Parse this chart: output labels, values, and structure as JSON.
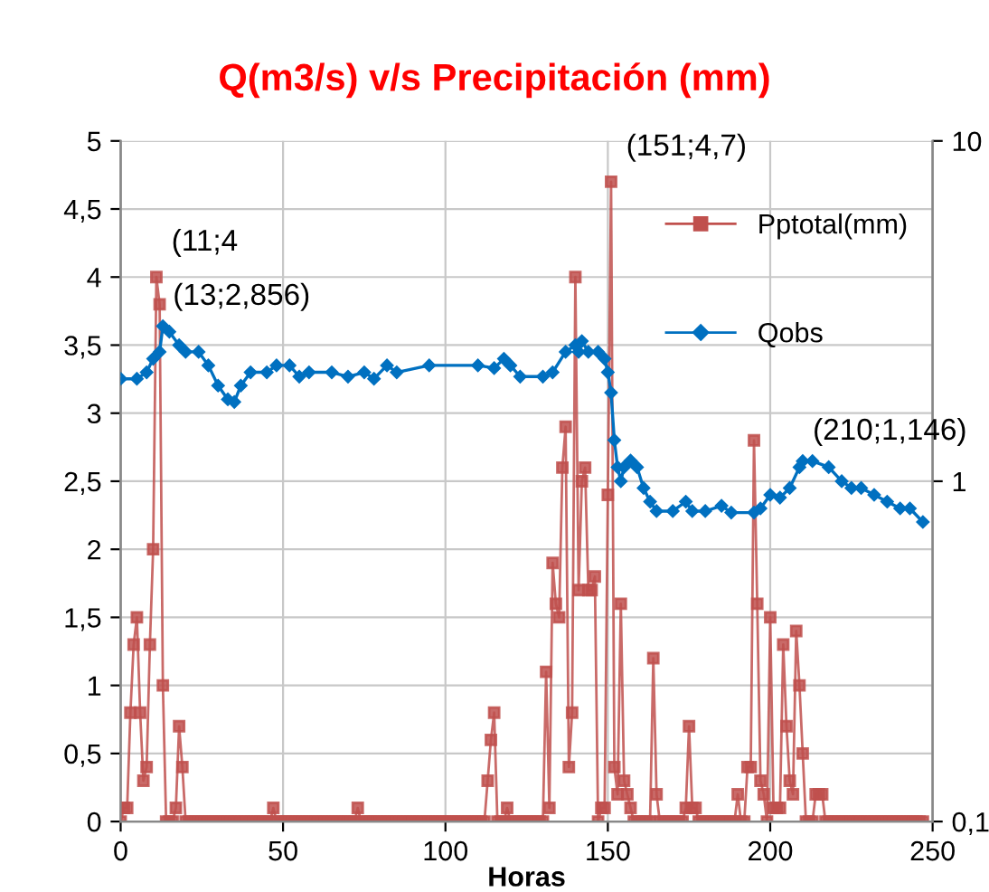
{
  "chart_data": {
    "type": "line",
    "title": "Q(m3/s) v/s Precipitación (mm)",
    "xlabel": "Horas",
    "xlim": [
      0,
      250
    ],
    "xticks": [
      0,
      50,
      100,
      150,
      200,
      250
    ],
    "ylim": [
      0,
      5
    ],
    "yticks": [
      0,
      {
        "value": 0.5,
        "label": "0,5"
      },
      1,
      {
        "value": 1.5,
        "label": "1,5"
      },
      2,
      {
        "value": 2.5,
        "label": "2,5"
      },
      3,
      {
        "value": 3.5,
        "label": "3,5"
      },
      4,
      {
        "value": 4.5,
        "label": "4,5"
      },
      5
    ],
    "y2lim": [
      0.1,
      10
    ],
    "y2ticks": [
      {
        "value": 0.1,
        "label": "0,1"
      },
      1,
      10
    ],
    "log": "y2",
    "grid": true,
    "legend": "top right",
    "annotations": [
      {
        "text": "(11;4",
        "x": 11,
        "y": 4
      },
      {
        "text": "(151;4,7)",
        "x": 151,
        "y": 4.7
      }
    ],
    "series": [
      {
        "name": "Pptotal(mm)",
        "color": "#c0504d",
        "marker": "square",
        "x": [
          0,
          1,
          2,
          3,
          4,
          5,
          6,
          7,
          8,
          9,
          10,
          11,
          12,
          13,
          14,
          15,
          16,
          17,
          18,
          19,
          20,
          21,
          22,
          23,
          24,
          25,
          26,
          27,
          28,
          29,
          30,
          31,
          32,
          33,
          34,
          35,
          36,
          37,
          38,
          39,
          40,
          41,
          42,
          43,
          44,
          45,
          46,
          47,
          48,
          49,
          50,
          51,
          52,
          53,
          54,
          55,
          56,
          57,
          58,
          59,
          60,
          61,
          62,
          63,
          64,
          65,
          66,
          67,
          68,
          69,
          70,
          71,
          72,
          73,
          74,
          75,
          76,
          77,
          78,
          79,
          80,
          81,
          82,
          83,
          84,
          85,
          86,
          87,
          88,
          89,
          90,
          91,
          92,
          93,
          94,
          95,
          96,
          97,
          98,
          99,
          100,
          101,
          102,
          103,
          104,
          105,
          106,
          107,
          108,
          109,
          110,
          111,
          112,
          113,
          114,
          115,
          116,
          117,
          118,
          119,
          120,
          121,
          122,
          123,
          124,
          125,
          126,
          127,
          128,
          129,
          130,
          131,
          132,
          133,
          134,
          135,
          136,
          137,
          138,
          139,
          140,
          141,
          142,
          143,
          144,
          145,
          146,
          147,
          148,
          149,
          150,
          151,
          152,
          153,
          154,
          155,
          156,
          157,
          158,
          159,
          160,
          161,
          162,
          163,
          164,
          165,
          166,
          167,
          168,
          169,
          170,
          171,
          172,
          173,
          174,
          175,
          176,
          177,
          178,
          179,
          180,
          181,
          182,
          183,
          184,
          185,
          186,
          187,
          188,
          189,
          190,
          191,
          192,
          193,
          194,
          195,
          196,
          197,
          198,
          199,
          200,
          201,
          202,
          203,
          204,
          205,
          206,
          207,
          208,
          209,
          210,
          211,
          212,
          213,
          214,
          215,
          216,
          217,
          218,
          219,
          220,
          221,
          222,
          223,
          224,
          225,
          226,
          227,
          228,
          229,
          230,
          231,
          232,
          233,
          234,
          235,
          236,
          237,
          238,
          239,
          240,
          241,
          242,
          243,
          244,
          245,
          246,
          247
        ],
        "values": [
          0,
          0.1,
          0.1,
          0.8,
          1.3,
          1.5,
          0.8,
          0.3,
          0.4,
          1.3,
          2,
          4,
          3.8,
          1,
          0,
          0,
          0,
          0.1,
          0.7,
          0.4,
          0,
          0,
          0,
          0,
          0,
          0,
          0,
          0,
          0,
          0,
          0,
          0,
          0,
          0,
          0,
          0,
          0,
          0,
          0,
          0,
          0,
          0,
          0,
          0,
          0,
          0,
          0,
          0.1,
          0,
          0,
          0,
          0,
          0,
          0,
          0,
          0,
          0,
          0,
          0,
          0,
          0,
          0,
          0,
          0,
          0,
          0,
          0,
          0,
          0,
          0,
          0,
          0,
          0,
          0.1,
          0,
          0,
          0,
          0,
          0,
          0,
          0,
          0,
          0,
          0,
          0,
          0,
          0,
          0,
          0,
          0,
          0,
          0,
          0,
          0,
          0,
          0,
          0,
          0,
          0,
          0,
          0,
          0,
          0,
          0,
          0,
          0,
          0,
          0,
          0,
          0,
          0,
          0,
          0,
          0.3,
          0.6,
          0.8,
          0,
          0,
          0,
          0.1,
          0,
          0,
          0,
          0,
          0,
          0,
          0,
          0,
          0,
          0,
          0,
          1.1,
          0.1,
          1.9,
          1.6,
          1.5,
          2.6,
          2.9,
          0.4,
          0.8,
          4,
          1.7,
          2.5,
          2.6,
          1.7,
          1.7,
          1.8,
          0,
          0.1,
          0.1,
          2.4,
          4.7,
          0.4,
          0.2,
          1.6,
          0.3,
          0.2,
          0.1,
          0,
          0,
          0,
          0,
          0,
          0,
          1.2,
          0.2,
          0,
          0,
          0,
          0,
          0,
          0,
          0,
          0,
          0.1,
          0.7,
          0.1,
          0.1,
          0,
          0,
          0,
          0,
          0,
          0,
          0,
          0,
          0,
          0,
          0,
          0,
          0.2,
          0,
          0,
          0.4,
          0.4,
          2.8,
          1.6,
          0.3,
          0.2,
          0,
          1.5,
          0.1,
          0.1,
          0.1,
          1.3,
          0.7,
          0.3,
          0.2,
          1.4,
          1,
          0.5,
          0,
          0,
          0,
          0.2,
          0.2,
          0.2,
          0,
          0,
          0,
          0,
          0,
          0,
          0,
          0,
          0,
          0,
          0,
          0,
          0,
          0,
          0,
          0,
          0,
          0,
          0,
          0,
          0,
          0,
          0,
          0,
          0,
          0,
          0,
          0,
          0,
          0,
          0
        ]
      },
      {
        "name": "Qobs",
        "color": "#0070c0",
        "marker": "diamond",
        "axis": "y2",
        "x": [
          0,
          5,
          8,
          10,
          12,
          13,
          15,
          18,
          20,
          24,
          27,
          30,
          33,
          35,
          37,
          40,
          45,
          48,
          52,
          55,
          58,
          65,
          70,
          75,
          78,
          82,
          85,
          95,
          110,
          115,
          118,
          120,
          123,
          130,
          133,
          137,
          140,
          141,
          142,
          144,
          147,
          149,
          150,
          151,
          152,
          153,
          154,
          155,
          157,
          159,
          161,
          163,
          165,
          170,
          174,
          176,
          180,
          185,
          188,
          195,
          197,
          200,
          203,
          206,
          209,
          210,
          213,
          218,
          222,
          225,
          228,
          232,
          236,
          240,
          243,
          247
        ],
        "values": [
          2.0,
          2.0,
          2.09,
          2.29,
          2.4,
          2.856,
          2.75,
          2.51,
          2.4,
          2.4,
          2.19,
          1.91,
          1.74,
          1.71,
          1.91,
          2.09,
          2.09,
          2.19,
          2.19,
          2.03,
          2.09,
          2.09,
          2.03,
          2.09,
          2.0,
          2.19,
          2.09,
          2.19,
          2.19,
          2.15,
          2.29,
          2.19,
          2.03,
          2.03,
          2.09,
          2.4,
          2.51,
          2.4,
          2.58,
          2.4,
          2.4,
          2.29,
          2.09,
          1.82,
          1.32,
          1.1,
          1.0,
          1.1,
          1.15,
          1.1,
          0.955,
          0.871,
          0.817,
          0.817,
          0.871,
          0.817,
          0.817,
          0.847,
          0.809,
          0.809,
          0.832,
          0.912,
          0.895,
          0.955,
          1.1,
          1.146,
          1.146,
          1.1,
          1.0,
          0.955,
          0.955,
          0.912,
          0.871,
          0.832,
          0.832,
          0.759
        ],
        "value_labels": [
          null,
          null,
          null,
          null,
          null,
          "(13;2,856)",
          null,
          null,
          null,
          null,
          null,
          null,
          null,
          null,
          null,
          null,
          null,
          null,
          null,
          null,
          null,
          null,
          null,
          null,
          null,
          null,
          null,
          null,
          null,
          null,
          null,
          null,
          null,
          null,
          null,
          null,
          null,
          null,
          null,
          null,
          null,
          null,
          null,
          null,
          null,
          null,
          null,
          null,
          null,
          null,
          null,
          null,
          null,
          null,
          null,
          null,
          null,
          null,
          null,
          null,
          null,
          null,
          null,
          null,
          null,
          "(210;1,146)",
          null,
          null,
          null,
          null,
          null,
          null,
          null,
          null,
          null,
          null
        ]
      }
    ]
  }
}
